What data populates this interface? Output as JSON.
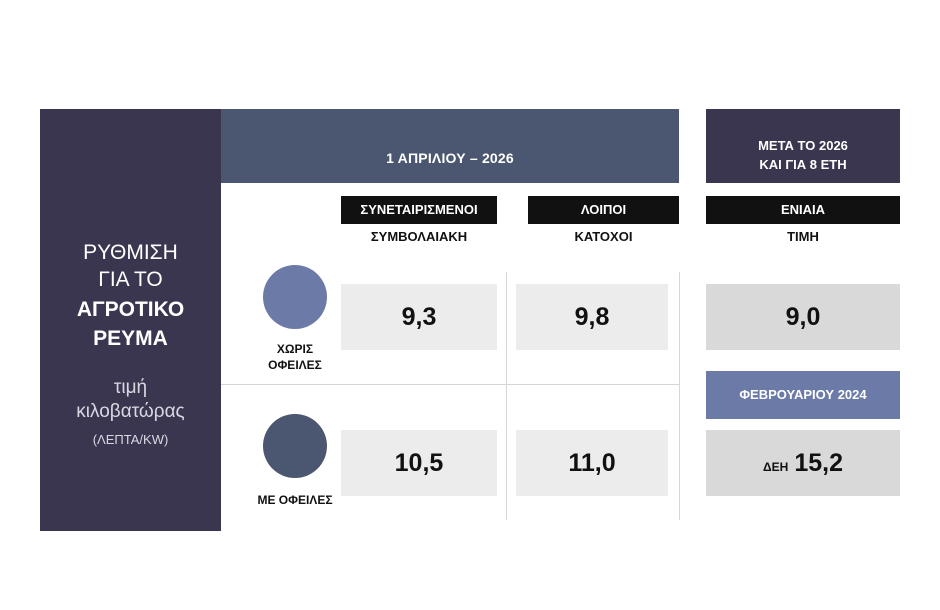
{
  "left_panel": {
    "line1": "ΡΥΘΜΙΣΗ",
    "line2": "ΓΙΑ ΤΟ",
    "line3": "ΑΓΡΟΤΙΚΟ",
    "line4": "ΡΕΥΜΑ",
    "sub1": "τιμή",
    "sub2": "κιλοβατώρας",
    "unit": "(ΛΕΠΤΑ/KW)"
  },
  "header": {
    "date_band": "1 ΑΠΡΙΛΙΟΥ – 2026",
    "after_line1": "ΜΕΤΑ ΤΟ 2026",
    "after_line2": "ΚΑΙ ΓΙΑ 8 ΕΤΗ"
  },
  "columns": [
    {
      "label": "ΣΥΝΕΤΑΙΡΙΣΜΕΝΟΙ",
      "sublabel": "ΣΥΜΒΟΛΑΙΑΚΗ"
    },
    {
      "label": "ΛΟΙΠΟΙ",
      "sublabel": "ΚΑΤΟΧΟΙ"
    },
    {
      "label": "ΕΝΙΑΙΑ",
      "sublabel": "ΤΙΜΗ"
    }
  ],
  "rows": [
    {
      "label_line1": "ΧΩΡΙΣ",
      "label_line2": "ΟΦΕΙΛΕΣ",
      "color": "#6c7aa7",
      "values": [
        "9,3",
        "9,8",
        "9,0"
      ]
    },
    {
      "label_line1": "ΜΕ ΟΦΕΙΛΕΣ",
      "color": "#4b5670",
      "values": [
        "10,5",
        "11,0"
      ]
    }
  ],
  "february": {
    "label": "ΦΕΒΡΟΥΑΡΙΟΥ 2024",
    "prefix": "ΔΕΗ",
    "value": "15,2"
  },
  "colors": {
    "panel_dark": "#3a3650",
    "band_slate": "#4b5670",
    "accent_blue": "#6c7aa7"
  }
}
